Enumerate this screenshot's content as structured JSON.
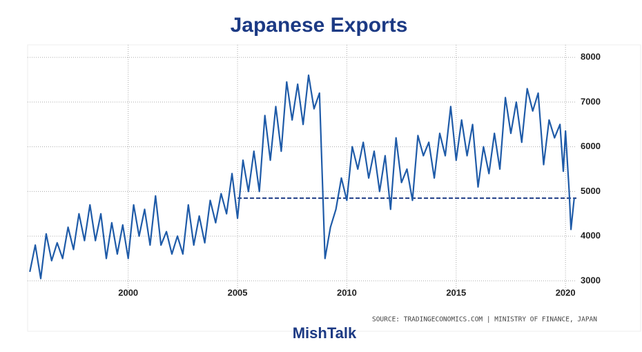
{
  "chart_data": {
    "type": "line",
    "title": "Japanese Exports",
    "source": "SOURCE: TRADINGECONOMICS.COM | MINISTRY OF FINANCE, JAPAN",
    "footer": "MishTalk",
    "color": "#1f5ba8",
    "x": [
      1995.5,
      1995.75,
      1996.0,
      1996.25,
      1996.5,
      1996.75,
      1997.0,
      1997.25,
      1997.5,
      1997.75,
      1998.0,
      1998.25,
      1998.5,
      1998.75,
      1999.0,
      1999.25,
      1999.5,
      1999.75,
      2000.0,
      2000.25,
      2000.5,
      2000.75,
      2001.0,
      2001.25,
      2001.5,
      2001.75,
      2002.0,
      2002.25,
      2002.5,
      2002.75,
      2003.0,
      2003.25,
      2003.5,
      2003.75,
      2004.0,
      2004.25,
      2004.5,
      2004.75,
      2005.0,
      2005.25,
      2005.5,
      2005.75,
      2006.0,
      2006.25,
      2006.5,
      2006.75,
      2007.0,
      2007.25,
      2007.5,
      2007.75,
      2008.0,
      2008.25,
      2008.5,
      2008.75,
      2009.0,
      2009.25,
      2009.5,
      2009.75,
      2010.0,
      2010.25,
      2010.5,
      2010.75,
      2011.0,
      2011.25,
      2011.5,
      2011.75,
      2012.0,
      2012.25,
      2012.5,
      2012.75,
      2013.0,
      2013.25,
      2013.5,
      2013.75,
      2014.0,
      2014.25,
      2014.5,
      2014.75,
      2015.0,
      2015.25,
      2015.5,
      2015.75,
      2016.0,
      2016.25,
      2016.5,
      2016.75,
      2017.0,
      2017.25,
      2017.5,
      2017.75,
      2018.0,
      2018.25,
      2018.5,
      2018.75,
      2019.0,
      2019.25,
      2019.5,
      2019.75,
      2019.9,
      2020.0,
      2020.17,
      2020.25,
      2020.4
    ],
    "values": [
      3200,
      3800,
      3050,
      4050,
      3450,
      3850,
      3500,
      4200,
      3700,
      4500,
      3900,
      4700,
      3900,
      4500,
      3500,
      4300,
      3600,
      4250,
      3500,
      4700,
      4000,
      4600,
      3800,
      4900,
      3800,
      4100,
      3600,
      4000,
      3600,
      4700,
      3800,
      4450,
      3850,
      4800,
      4300,
      4950,
      4500,
      5400,
      4400,
      5700,
      5000,
      5900,
      5000,
      6700,
      5700,
      6900,
      5900,
      7450,
      6600,
      7400,
      6500,
      7600,
      6850,
      7200,
      3500,
      4200,
      4600,
      5300,
      4800,
      6000,
      5500,
      6100,
      5300,
      5900,
      5000,
      5800,
      4600,
      6200,
      5200,
      5500,
      4800,
      6250,
      5800,
      6100,
      5300,
      6300,
      5800,
      6900,
      5700,
      6600,
      5800,
      6500,
      5100,
      6000,
      5400,
      6300,
      5500,
      7100,
      6300,
      7000,
      6100,
      7300,
      6800,
      7200,
      5600,
      6600,
      6200,
      6500,
      5450,
      6350,
      5000,
      4150,
      4850
    ],
    "reference_line": {
      "value": 4850,
      "from": 2005
    },
    "xlim": [
      1995.4,
      2020.5
    ],
    "xticks": [
      2000,
      2005,
      2010,
      2015,
      2020
    ],
    "ylim": [
      2720,
      8280
    ],
    "yticks": [
      3000,
      4000,
      5000,
      6000,
      7000,
      8000
    ],
    "grid": true
  }
}
